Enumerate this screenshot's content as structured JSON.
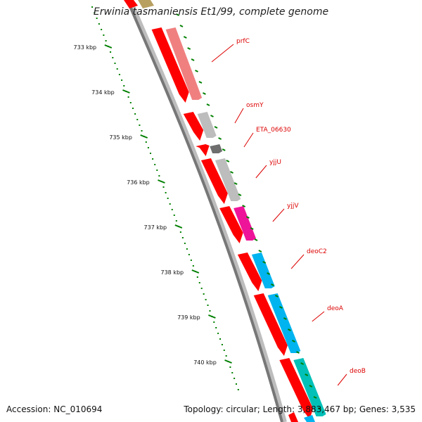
{
  "title": "Erwinia tasmaniensis Et1/99, complete genome",
  "accession_text": "Accession: NC_010694",
  "summary_text": "Topology: circular; Length: 3,883,467 bp; Genes: 3,535",
  "colors": {
    "backbone_dark": "#777777",
    "backbone_light": "#c8c8c8",
    "ruler_green": "#008000",
    "label_red": "#dd0000"
  },
  "scale_ticks": [
    "733 kbp",
    "734 kbp",
    "735 kbp",
    "736 kbp",
    "737 kbp",
    "738 kbp",
    "739 kbp",
    "740 kbp"
  ],
  "genes": [
    {
      "label": "prfC",
      "strand_color": "#ff0000",
      "cog_color": "#f08080"
    },
    {
      "label": "osmY",
      "strand_color": "#ff0000",
      "cog_color": "#bdbdbd"
    },
    {
      "label": "ETA_06630",
      "strand_color": "#ff0000",
      "cog_color": "#6e6e6e"
    },
    {
      "label": "yjjU",
      "strand_color": "#ff0000",
      "cog_color": "#bdbdbd"
    },
    {
      "label": "yjjV",
      "strand_color": "#ff0000",
      "cog_color": "#ee1499"
    },
    {
      "label": "deoC2",
      "strand_color": "#ff0000",
      "cog_color": "#00b4f0"
    },
    {
      "label": "deoA",
      "strand_color": "#ff0000",
      "cog_color": "#00b4f0"
    },
    {
      "label": "deoB",
      "strand_color": "#ff0000",
      "cog_color": "#00c0b8"
    }
  ]
}
